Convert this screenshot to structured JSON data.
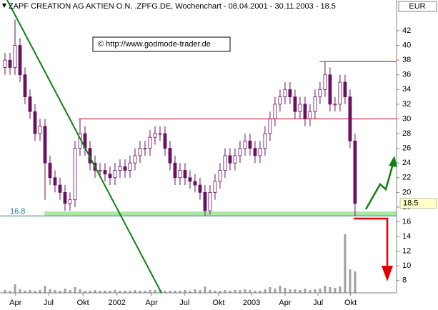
{
  "chart_data": {
    "type": "candlestick",
    "title": "ZAPF CREATION AG AKTIEN O.N. .ZPFG.DE, Wochenchart - 08.04.2001 - 30.11.2003 - 18.5",
    "watermark": "© http://www.godmode-trader.de",
    "currency": "EUR",
    "last_price": 18.5,
    "color_up": "#ffffff",
    "color_down": "#6a1060",
    "color_wick": "#6a1060",
    "open": [
      37,
      38,
      37,
      40,
      36,
      33,
      31,
      28,
      29,
      24,
      22,
      21,
      20,
      18.5,
      19,
      26,
      28,
      26,
      24,
      23,
      23,
      22.5,
      22,
      23,
      23.5,
      23,
      24,
      25,
      26,
      26,
      27.5,
      28,
      28,
      26,
      24,
      22,
      23,
      22,
      21.5,
      21,
      20,
      17.5,
      20,
      21.5,
      23,
      25,
      24,
      25,
      26,
      27,
      26,
      25,
      26,
      28,
      30,
      32,
      33,
      34,
      33,
      31,
      32,
      30,
      31,
      33,
      34,
      36,
      32,
      32,
      35,
      33,
      27
    ],
    "high": [
      39,
      39,
      43.5,
      41,
      37,
      34,
      32,
      30,
      30,
      25,
      23,
      22,
      21,
      20,
      27,
      30,
      29,
      27,
      25,
      24,
      24,
      23.5,
      24,
      24.5,
      24.5,
      25,
      26,
      27,
      27,
      28.5,
      29,
      29,
      29,
      27,
      25,
      24,
      24,
      23,
      22.5,
      22,
      21,
      21,
      22.5,
      24,
      26,
      26,
      26,
      27,
      28,
      28,
      27,
      27,
      29,
      31,
      33,
      34,
      35,
      35,
      34,
      33,
      33,
      32,
      34,
      35,
      37.8,
      37,
      33,
      36,
      36,
      34,
      28
    ],
    "low": [
      36,
      36,
      36,
      35,
      32,
      30,
      27,
      27,
      19,
      21,
      20,
      19,
      17.5,
      17.5,
      18,
      25,
      25,
      23,
      22,
      22,
      21.5,
      21,
      21,
      22,
      22,
      22,
      23,
      24,
      25,
      25,
      26.5,
      27,
      25,
      23,
      21,
      21,
      21,
      20.5,
      20,
      19,
      16.8,
      17,
      19,
      20.5,
      22,
      23,
      23,
      24,
      25,
      25,
      24,
      24,
      25,
      27,
      29,
      31,
      32,
      32,
      30,
      30,
      29,
      29,
      30,
      32,
      33,
      31,
      31,
      31,
      32,
      26,
      16.8
    ],
    "close": [
      38,
      37,
      40,
      36,
      33,
      31,
      28,
      29,
      24,
      22,
      21,
      20,
      18.5,
      19,
      26,
      28,
      26,
      24,
      23,
      23,
      22.5,
      22,
      23,
      23.5,
      23,
      24,
      25,
      26,
      26,
      27.5,
      28,
      28,
      26,
      24,
      22,
      23,
      22,
      21.5,
      21,
      20,
      17.5,
      20,
      21.5,
      23,
      25,
      24,
      25,
      26,
      27,
      26,
      25,
      26,
      28,
      30,
      32,
      33,
      34,
      33,
      31,
      32,
      30,
      31,
      33,
      34,
      36,
      32,
      32,
      35,
      33,
      27,
      18.5
    ],
    "volume": [
      4,
      3,
      12,
      5,
      3,
      4,
      3,
      4,
      10,
      5,
      4,
      3,
      6,
      4,
      8,
      5,
      3,
      3,
      4,
      3,
      3,
      3,
      4,
      3,
      3,
      3,
      4,
      3,
      3,
      4,
      4,
      3,
      3,
      3,
      3,
      3,
      4,
      3,
      5,
      4,
      9,
      4,
      3,
      3,
      4,
      3,
      4,
      4,
      5,
      4,
      3,
      3,
      5,
      8,
      6,
      10,
      7,
      5,
      5,
      4,
      6,
      4,
      5,
      6,
      10,
      8,
      7,
      9,
      82,
      33,
      30
    ],
    "volume_color": "#a0a0a0",
    "volume_lim": [
      0,
      100
    ],
    "xlim": [
      -1,
      78.3
    ],
    "xticks": [
      {
        "value": 2.1,
        "label": "Apr"
      },
      {
        "value": 8.7,
        "label": "Jul"
      },
      {
        "value": 15.6,
        "label": "Okt"
      },
      {
        "value": 22.4,
        "label": "2002"
      },
      {
        "value": 29.3,
        "label": "Apr"
      },
      {
        "value": 35.9,
        "label": "Jul"
      },
      {
        "value": 42.7,
        "label": "Okt"
      },
      {
        "value": 49.3,
        "label": "2003"
      },
      {
        "value": 56,
        "label": "Apr"
      },
      {
        "value": 62.6,
        "label": "Jul"
      },
      {
        "value": 69.1,
        "label": "Okt"
      }
    ],
    "ylim": [
      6.33,
      46.18
    ],
    "yticks": [
      8,
      10,
      12,
      14,
      16,
      18,
      20,
      22,
      24,
      26,
      28,
      30,
      32,
      34,
      36,
      38,
      40,
      42
    ],
    "resistance": [
      37.8,
      30
    ],
    "resistance_color": "#c00000",
    "support": 16.8,
    "support_zone": [
      16.8,
      17.4
    ],
    "support_color": "#a8e8a0"
  }
}
